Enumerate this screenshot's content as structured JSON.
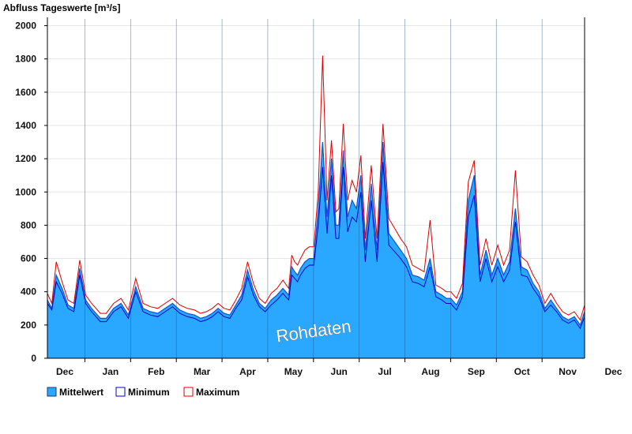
{
  "chart_data": {
    "type": "area",
    "title": "Abfluss Tageswerte [m³/s]",
    "watermark": "Rohdaten",
    "ylim": [
      0,
      2050
    ],
    "yticks": [
      0,
      200,
      400,
      600,
      800,
      1000,
      1200,
      1400,
      1600,
      1800,
      2000
    ],
    "month_labels": [
      "Dec",
      "Jan",
      "Feb",
      "Mar",
      "Apr",
      "May",
      "Jun",
      "Jul",
      "Aug",
      "Sep",
      "Oct",
      "Nov",
      "Dec"
    ],
    "x_start_day": 0,
    "x_end_day": 365,
    "grid": true,
    "legend_position": "bottom-left",
    "colors": {
      "mean_fill": "#2aa8ff",
      "minimum_line": "#0000cc",
      "maximum_line": "#dd0000",
      "mean_line": "#0a55d6"
    },
    "series_order": [
      "Mittelwert",
      "Minimum",
      "Maximum"
    ],
    "day": [
      0,
      3,
      6,
      10,
      14,
      18,
      22,
      26,
      30,
      33,
      36,
      40,
      45,
      50,
      55,
      60,
      65,
      70,
      75,
      80,
      85,
      90,
      95,
      100,
      104,
      108,
      112,
      116,
      120,
      124,
      128,
      132,
      136,
      140,
      144,
      148,
      152,
      156,
      160,
      164,
      166,
      168,
      170,
      172,
      175,
      178,
      181,
      184,
      187,
      190,
      193,
      196,
      198,
      201,
      204,
      207,
      210,
      213,
      216,
      220,
      224,
      228,
      232,
      236,
      240,
      244,
      248,
      252,
      256,
      260,
      264,
      268,
      271,
      274,
      278,
      282,
      286,
      290,
      294,
      298,
      302,
      306,
      310,
      314,
      318,
      322,
      326,
      330,
      334,
      338,
      342,
      346,
      350,
      354,
      358,
      362,
      365
    ],
    "series": [
      {
        "name": "Mittelwert",
        "values": [
          350,
          300,
          500,
          420,
          320,
          300,
          540,
          350,
          300,
          270,
          240,
          240,
          300,
          330,
          260,
          430,
          300,
          280,
          270,
          300,
          330,
          290,
          270,
          260,
          240,
          250,
          270,
          300,
          270,
          260,
          320,
          380,
          530,
          410,
          330,
          300,
          350,
          380,
          420,
          380,
          550,
          520,
          500,
          540,
          580,
          600,
          600,
          900,
          1300,
          850,
          1200,
          800,
          800,
          1250,
          850,
          950,
          900,
          1100,
          650,
          1050,
          650,
          1300,
          750,
          700,
          650,
          600,
          500,
          490,
          470,
          600,
          400,
          380,
          360,
          360,
          320,
          400,
          950,
          1100,
          500,
          650,
          500,
          600,
          500,
          580,
          900,
          550,
          530,
          450,
          400,
          300,
          350,
          300,
          250,
          230,
          250,
          200,
          280
        ]
      },
      {
        "name": "Minimum",
        "values": [
          330,
          290,
          460,
          390,
          300,
          280,
          500,
          330,
          280,
          250,
          220,
          220,
          280,
          310,
          240,
          400,
          280,
          260,
          250,
          280,
          310,
          270,
          250,
          240,
          220,
          230,
          250,
          280,
          250,
          240,
          300,
          350,
          490,
          380,
          310,
          280,
          320,
          350,
          390,
          350,
          500,
          480,
          460,
          500,
          540,
          560,
          560,
          800,
          1150,
          750,
          1100,
          720,
          720,
          1150,
          760,
          850,
          820,
          1000,
          580,
          950,
          580,
          1180,
          680,
          640,
          600,
          550,
          460,
          450,
          430,
          550,
          370,
          350,
          330,
          330,
          290,
          370,
          850,
          980,
          460,
          600,
          460,
          550,
          460,
          530,
          820,
          500,
          490,
          420,
          370,
          280,
          320,
          280,
          230,
          210,
          230,
          180,
          250
        ]
      },
      {
        "name": "Maximum",
        "values": [
          390,
          330,
          580,
          460,
          350,
          330,
          590,
          380,
          330,
          300,
          270,
          270,
          330,
          360,
          290,
          480,
          330,
          310,
          300,
          330,
          360,
          320,
          300,
          290,
          270,
          280,
          300,
          330,
          300,
          290,
          350,
          420,
          580,
          450,
          360,
          330,
          390,
          420,
          470,
          420,
          620,
          580,
          560,
          600,
          650,
          670,
          670,
          1000,
          1820,
          950,
          1310,
          880,
          900,
          1410,
          950,
          1070,
          1000,
          1220,
          720,
          1160,
          720,
          1410,
          840,
          780,
          720,
          670,
          560,
          540,
          520,
          830,
          440,
          420,
          400,
          400,
          360,
          450,
          1060,
          1190,
          560,
          720,
          560,
          680,
          560,
          650,
          1130,
          610,
          580,
          500,
          440,
          330,
          390,
          330,
          280,
          260,
          280,
          230,
          320
        ]
      }
    ],
    "legend": [
      {
        "label": "Mittelwert",
        "swatch": "fill"
      },
      {
        "label": "Minimum",
        "swatch": "min"
      },
      {
        "label": "Maximum",
        "swatch": "max"
      }
    ]
  }
}
